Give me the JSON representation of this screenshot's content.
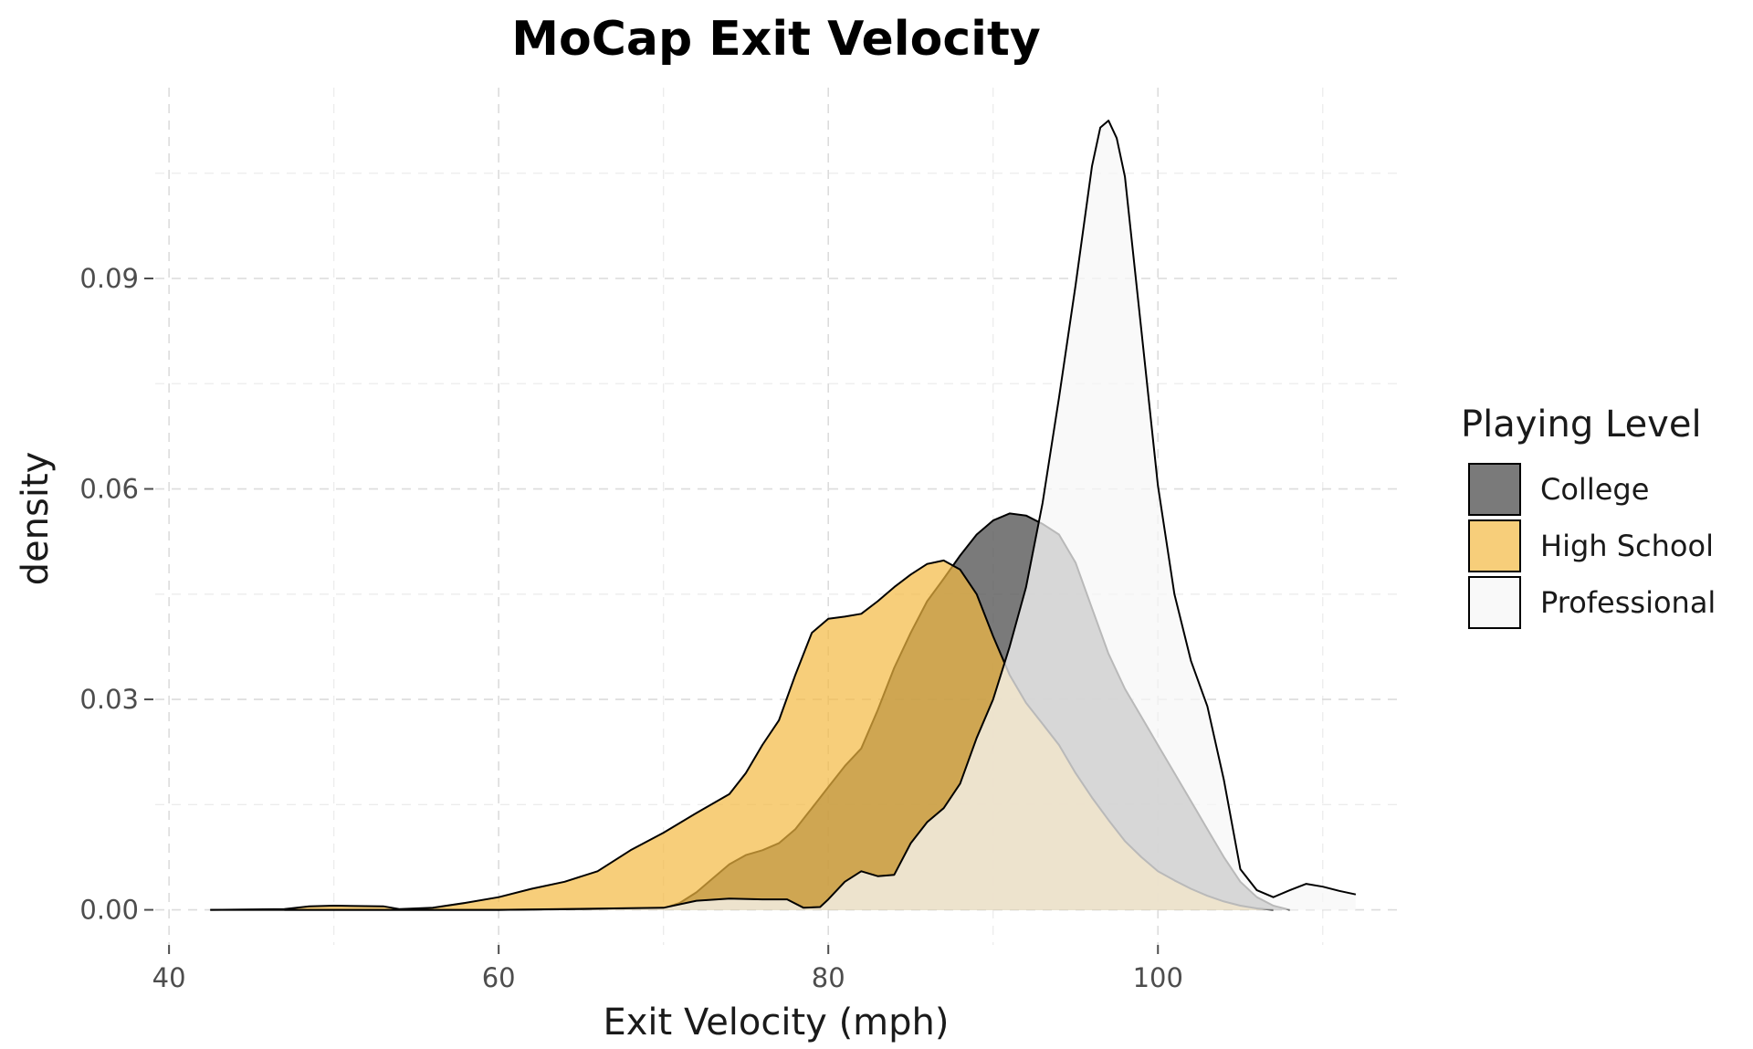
{
  "chart_data": {
    "type": "area",
    "title": "MoCap Exit Velocity",
    "xlabel": "Exit Velocity (mph)",
    "ylabel": "density",
    "xlim": [
      37.5,
      114.5
    ],
    "ylim": [
      -0.005,
      0.1185
    ],
    "x_ticks": [
      40,
      60,
      80,
      100
    ],
    "y_ticks": [
      0.0,
      0.03,
      0.06,
      0.09
    ],
    "x_tick_labels": [
      "40",
      "60",
      "80",
      "100"
    ],
    "y_tick_labels": [
      "0.00",
      "0.03",
      "0.06",
      "0.09"
    ],
    "grid": true,
    "legend": {
      "title": "Playing Level",
      "placement": "right",
      "entries": [
        "College",
        "High School",
        "Professional"
      ]
    },
    "series": [
      {
        "name": "College",
        "fill": "#4d4d4d",
        "fill_opacity": 0.75,
        "x": [
          47,
          60,
          70,
          71,
          72,
          73,
          74,
          75,
          76,
          77,
          78,
          79,
          80,
          81,
          82,
          83,
          84,
          85,
          86,
          87,
          88,
          89,
          90,
          91,
          92,
          93,
          94,
          95,
          96,
          97,
          98,
          99,
          100,
          101,
          102,
          103,
          104,
          105,
          106,
          107,
          108
        ],
        "values": [
          0.0,
          0.0,
          0.0002,
          0.001,
          0.0025,
          0.0045,
          0.0065,
          0.0078,
          0.0085,
          0.0095,
          0.0115,
          0.0145,
          0.0175,
          0.0205,
          0.023,
          0.0285,
          0.0345,
          0.0395,
          0.044,
          0.0472,
          0.0505,
          0.0535,
          0.0555,
          0.0565,
          0.0562,
          0.055,
          0.0535,
          0.0495,
          0.043,
          0.0365,
          0.0315,
          0.0275,
          0.0235,
          0.0195,
          0.0155,
          0.0115,
          0.0075,
          0.004,
          0.0018,
          0.0006,
          0.0
        ]
      },
      {
        "name": "High School",
        "fill": "#f4b942",
        "fill_opacity": 0.7,
        "x": [
          42.5,
          47,
          48.5,
          50,
          53,
          54,
          56,
          58,
          60,
          62,
          64,
          66,
          68,
          70,
          72,
          74,
          75,
          76,
          77,
          78,
          79,
          80,
          81,
          82,
          83,
          84,
          85,
          86,
          87,
          88,
          89,
          90,
          91,
          92,
          93,
          94,
          95,
          96,
          97,
          98,
          99,
          100,
          101,
          102,
          103,
          104,
          105,
          106,
          107
        ],
        "values": [
          0.0,
          0.0001,
          0.0005,
          0.0006,
          0.0005,
          0.0001,
          0.0003,
          0.001,
          0.0018,
          0.003,
          0.004,
          0.0055,
          0.0085,
          0.011,
          0.0138,
          0.0165,
          0.0195,
          0.0235,
          0.027,
          0.0335,
          0.0395,
          0.0415,
          0.0418,
          0.0422,
          0.044,
          0.046,
          0.0478,
          0.0493,
          0.0498,
          0.0485,
          0.045,
          0.039,
          0.0335,
          0.0295,
          0.0265,
          0.0235,
          0.0195,
          0.016,
          0.0128,
          0.0098,
          0.0075,
          0.0055,
          0.0042,
          0.003,
          0.002,
          0.0012,
          0.0006,
          0.0002,
          0.0
        ]
      },
      {
        "name": "Professional",
        "fill": "#f7f7f7",
        "fill_opacity": 0.75,
        "x": [
          42.5,
          60,
          70,
          72,
          74,
          76,
          77.5,
          78.5,
          79.5,
          80,
          81,
          82,
          83,
          84,
          85,
          86,
          87,
          88,
          89,
          90,
          91,
          92,
          93,
          94,
          95,
          96,
          96.5,
          97,
          97.5,
          98,
          99,
          100,
          101,
          102,
          103,
          104,
          105,
          106,
          107,
          108,
          109,
          110,
          111,
          112
        ],
        "values": [
          0.0,
          0.0,
          0.0003,
          0.0013,
          0.0016,
          0.0015,
          0.0015,
          0.0003,
          0.0004,
          0.0015,
          0.004,
          0.0055,
          0.0048,
          0.005,
          0.0095,
          0.0125,
          0.0145,
          0.018,
          0.0245,
          0.03,
          0.0375,
          0.046,
          0.058,
          0.073,
          0.089,
          0.106,
          0.1115,
          0.1125,
          0.11,
          0.1045,
          0.0825,
          0.0605,
          0.045,
          0.0355,
          0.029,
          0.0185,
          0.0058,
          0.0028,
          0.0018,
          0.0028,
          0.0037,
          0.0033,
          0.0027,
          0.0022
        ]
      }
    ]
  }
}
